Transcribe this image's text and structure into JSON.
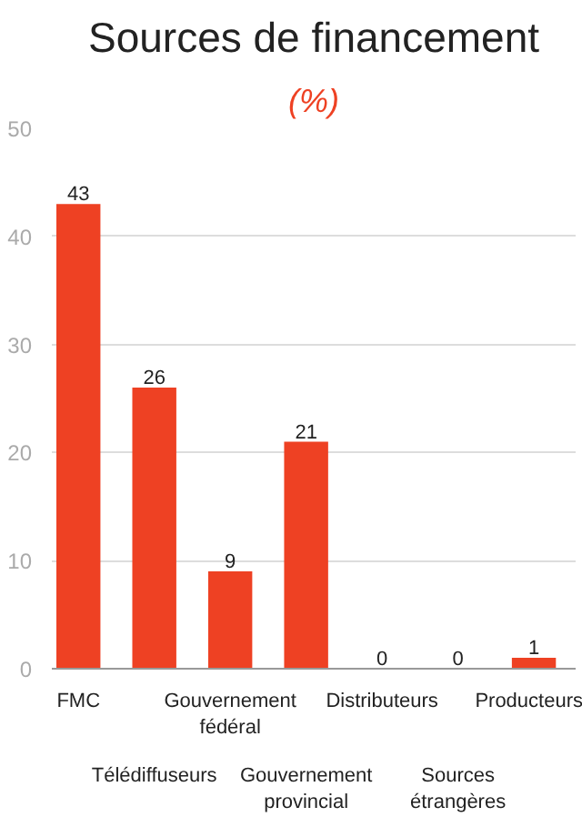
{
  "chart_data": {
    "type": "bar",
    "title": "Sources de financement",
    "subtitle": "(%)",
    "categories": [
      "FMC",
      "Télédiffuseurs",
      "Gouvernement fédéral",
      "Gouvernement provincial",
      "Distributeurs",
      "Sources étrangères",
      "Producteurs"
    ],
    "values": [
      43,
      26,
      9,
      21,
      0,
      0,
      1
    ],
    "color": "#ee4123",
    "ylim": [
      0,
      50
    ],
    "yticks": [
      0,
      10,
      20,
      30,
      40,
      50
    ],
    "grid": "y",
    "data_labels": true
  }
}
